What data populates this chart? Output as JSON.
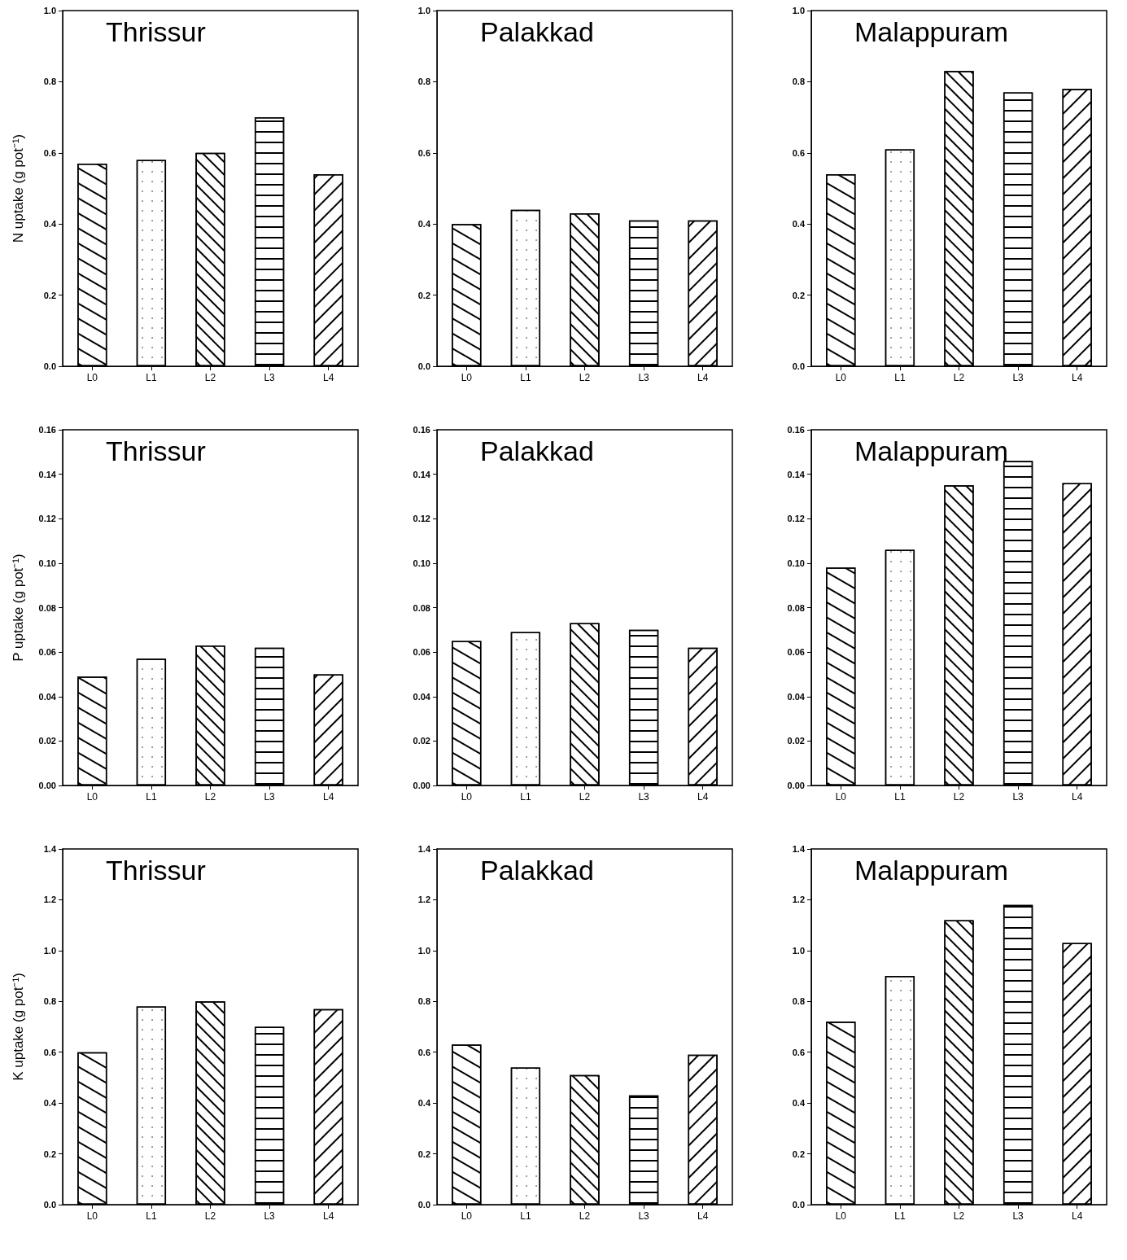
{
  "chart_data": [
    {
      "type": "bar",
      "title": "Thrissur",
      "ylabel": "N uptake (g pot⁻¹)",
      "categories": [
        "L0",
        "L1",
        "L2",
        "L3",
        "L4"
      ],
      "values": [
        0.57,
        0.58,
        0.6,
        0.7,
        0.54
      ],
      "colors": [
        "#ffffff",
        "#ffffff",
        "#ffffff",
        "#ffffff",
        "#ffffff"
      ],
      "ylim": [
        0,
        1.0
      ],
      "yticks": [
        {
          "value": 0,
          "label": "0.0"
        },
        0.2,
        0.4,
        0.6,
        0.8,
        {
          "value": 1,
          "label": "1.0"
        }
      ],
      "grid": false
    },
    {
      "type": "bar",
      "title": "Palakkad",
      "categories": [
        "L0",
        "L1",
        "L2",
        "L3",
        "L4"
      ],
      "values": [
        0.4,
        0.44,
        0.43,
        0.41,
        0.41
      ],
      "colors": [
        "#ffffff",
        "#ffffff",
        "#ffffff",
        "#ffffff",
        "#ffffff"
      ],
      "ylim": [
        0,
        1.0
      ],
      "yticks": [
        {
          "value": 0,
          "label": "0.0"
        },
        0.2,
        0.4,
        0.6,
        0.8,
        {
          "value": 1,
          "label": "1.0"
        }
      ],
      "grid": false
    },
    {
      "type": "bar",
      "title": "Malappuram",
      "categories": [
        "L0",
        "L1",
        "L2",
        "L3",
        "L4"
      ],
      "values": [
        0.54,
        0.61,
        0.83,
        0.77,
        0.78
      ],
      "colors": [
        "#ffffff",
        "#ffffff",
        "#ffffff",
        "#ffffff",
        "#ffffff"
      ],
      "ylim": [
        0,
        1.0
      ],
      "yticks": [
        {
          "value": 0,
          "label": "0.0"
        },
        0.2,
        0.4,
        0.6,
        0.8,
        {
          "value": 1,
          "label": "1.0"
        }
      ],
      "grid": false
    },
    {
      "type": "bar",
      "title": "Thrissur",
      "ylabel": "P uptake (g pot⁻¹)",
      "categories": [
        "L0",
        "L1",
        "L2",
        "L3",
        "L4"
      ],
      "values": [
        0.049,
        0.057,
        0.063,
        0.062,
        0.05
      ],
      "colors": [
        "#ffffff",
        "#ffffff",
        "#ffffff",
        "#ffffff",
        "#ffffff"
      ],
      "ylim": [
        0,
        0.16
      ],
      "yticks": [
        {
          "value": 0,
          "label": "0.00"
        },
        {
          "value": 0.02,
          "label": "0.02"
        },
        {
          "value": 0.04,
          "label": "0.04"
        },
        {
          "value": 0.06,
          "label": "0.06"
        },
        {
          "value": 0.08,
          "label": "0.08"
        },
        {
          "value": 0.1,
          "label": "0.10"
        },
        {
          "value": 0.12,
          "label": "0.12"
        },
        {
          "value": 0.14,
          "label": "0.14"
        },
        {
          "value": 0.16,
          "label": "0.16"
        }
      ],
      "grid": false
    },
    {
      "type": "bar",
      "title": "Palakkad",
      "categories": [
        "L0",
        "L1",
        "L2",
        "L3",
        "L4"
      ],
      "values": [
        0.065,
        0.069,
        0.073,
        0.07,
        0.062
      ],
      "colors": [
        "#ffffff",
        "#ffffff",
        "#ffffff",
        "#ffffff",
        "#ffffff"
      ],
      "ylim": [
        0,
        0.16
      ],
      "yticks": [
        {
          "value": 0,
          "label": "0.00"
        },
        {
          "value": 0.02,
          "label": "0.02"
        },
        {
          "value": 0.04,
          "label": "0.04"
        },
        {
          "value": 0.06,
          "label": "0.06"
        },
        {
          "value": 0.08,
          "label": "0.08"
        },
        {
          "value": 0.1,
          "label": "0.10"
        },
        {
          "value": 0.12,
          "label": "0.12"
        },
        {
          "value": 0.14,
          "label": "0.14"
        },
        {
          "value": 0.16,
          "label": "0.16"
        }
      ],
      "grid": false
    },
    {
      "type": "bar",
      "title": "Malappuram",
      "categories": [
        "L0",
        "L1",
        "L2",
        "L3",
        "L4"
      ],
      "values": [
        0.098,
        0.106,
        0.135,
        0.146,
        0.136
      ],
      "colors": [
        "#ffffff",
        "#ffffff",
        "#ffffff",
        "#ffffff",
        "#ffffff"
      ],
      "ylim": [
        0,
        0.16
      ],
      "yticks": [
        {
          "value": 0,
          "label": "0.00"
        },
        {
          "value": 0.02,
          "label": "0.02"
        },
        {
          "value": 0.04,
          "label": "0.04"
        },
        {
          "value": 0.06,
          "label": "0.06"
        },
        {
          "value": 0.08,
          "label": "0.08"
        },
        {
          "value": 0.1,
          "label": "0.10"
        },
        {
          "value": 0.12,
          "label": "0.12"
        },
        {
          "value": 0.14,
          "label": "0.14"
        },
        {
          "value": 0.16,
          "label": "0.16"
        }
      ],
      "grid": false
    },
    {
      "type": "bar",
      "title": "Thrissur",
      "ylabel": "K uptake (g pot⁻¹)",
      "categories": [
        "L0",
        "L1",
        "L2",
        "L3",
        "L4"
      ],
      "values": [
        0.6,
        0.78,
        0.8,
        0.7,
        0.77
      ],
      "colors": [
        "#ffffff",
        "#ffffff",
        "#ffffff",
        "#ffffff",
        "#ffffff"
      ],
      "ylim": [
        0,
        1.4
      ],
      "yticks": [
        {
          "value": 0,
          "label": "0.0"
        },
        0.2,
        0.4,
        0.6,
        0.8,
        {
          "value": 1,
          "label": "1.0"
        },
        1.2,
        1.4
      ],
      "grid": false
    },
    {
      "type": "bar",
      "title": "Palakkad",
      "categories": [
        "L0",
        "L1",
        "L2",
        "L3",
        "L4"
      ],
      "values": [
        0.63,
        0.54,
        0.51,
        0.43,
        0.59
      ],
      "colors": [
        "#ffffff",
        "#ffffff",
        "#ffffff",
        "#ffffff",
        "#ffffff"
      ],
      "ylim": [
        0,
        1.4
      ],
      "yticks": [
        {
          "value": 0,
          "label": "0.0"
        },
        0.2,
        0.4,
        0.6,
        0.8,
        {
          "value": 1,
          "label": "1.0"
        },
        1.2,
        1.4
      ],
      "grid": false
    },
    {
      "type": "bar",
      "title": "Malappuram",
      "categories": [
        "L0",
        "L1",
        "L2",
        "L3",
        "L4"
      ],
      "values": [
        0.72,
        0.9,
        1.12,
        1.18,
        1.03
      ],
      "colors": [
        "#ffffff",
        "#ffffff",
        "#ffffff",
        "#ffffff",
        "#ffffff"
      ],
      "ylim": [
        0,
        1.4
      ],
      "yticks": [
        {
          "value": 0,
          "label": "0.0"
        },
        0.2,
        0.4,
        0.6,
        0.8,
        {
          "value": 1,
          "label": "1.0"
        },
        1.2,
        1.4
      ],
      "grid": false
    }
  ]
}
